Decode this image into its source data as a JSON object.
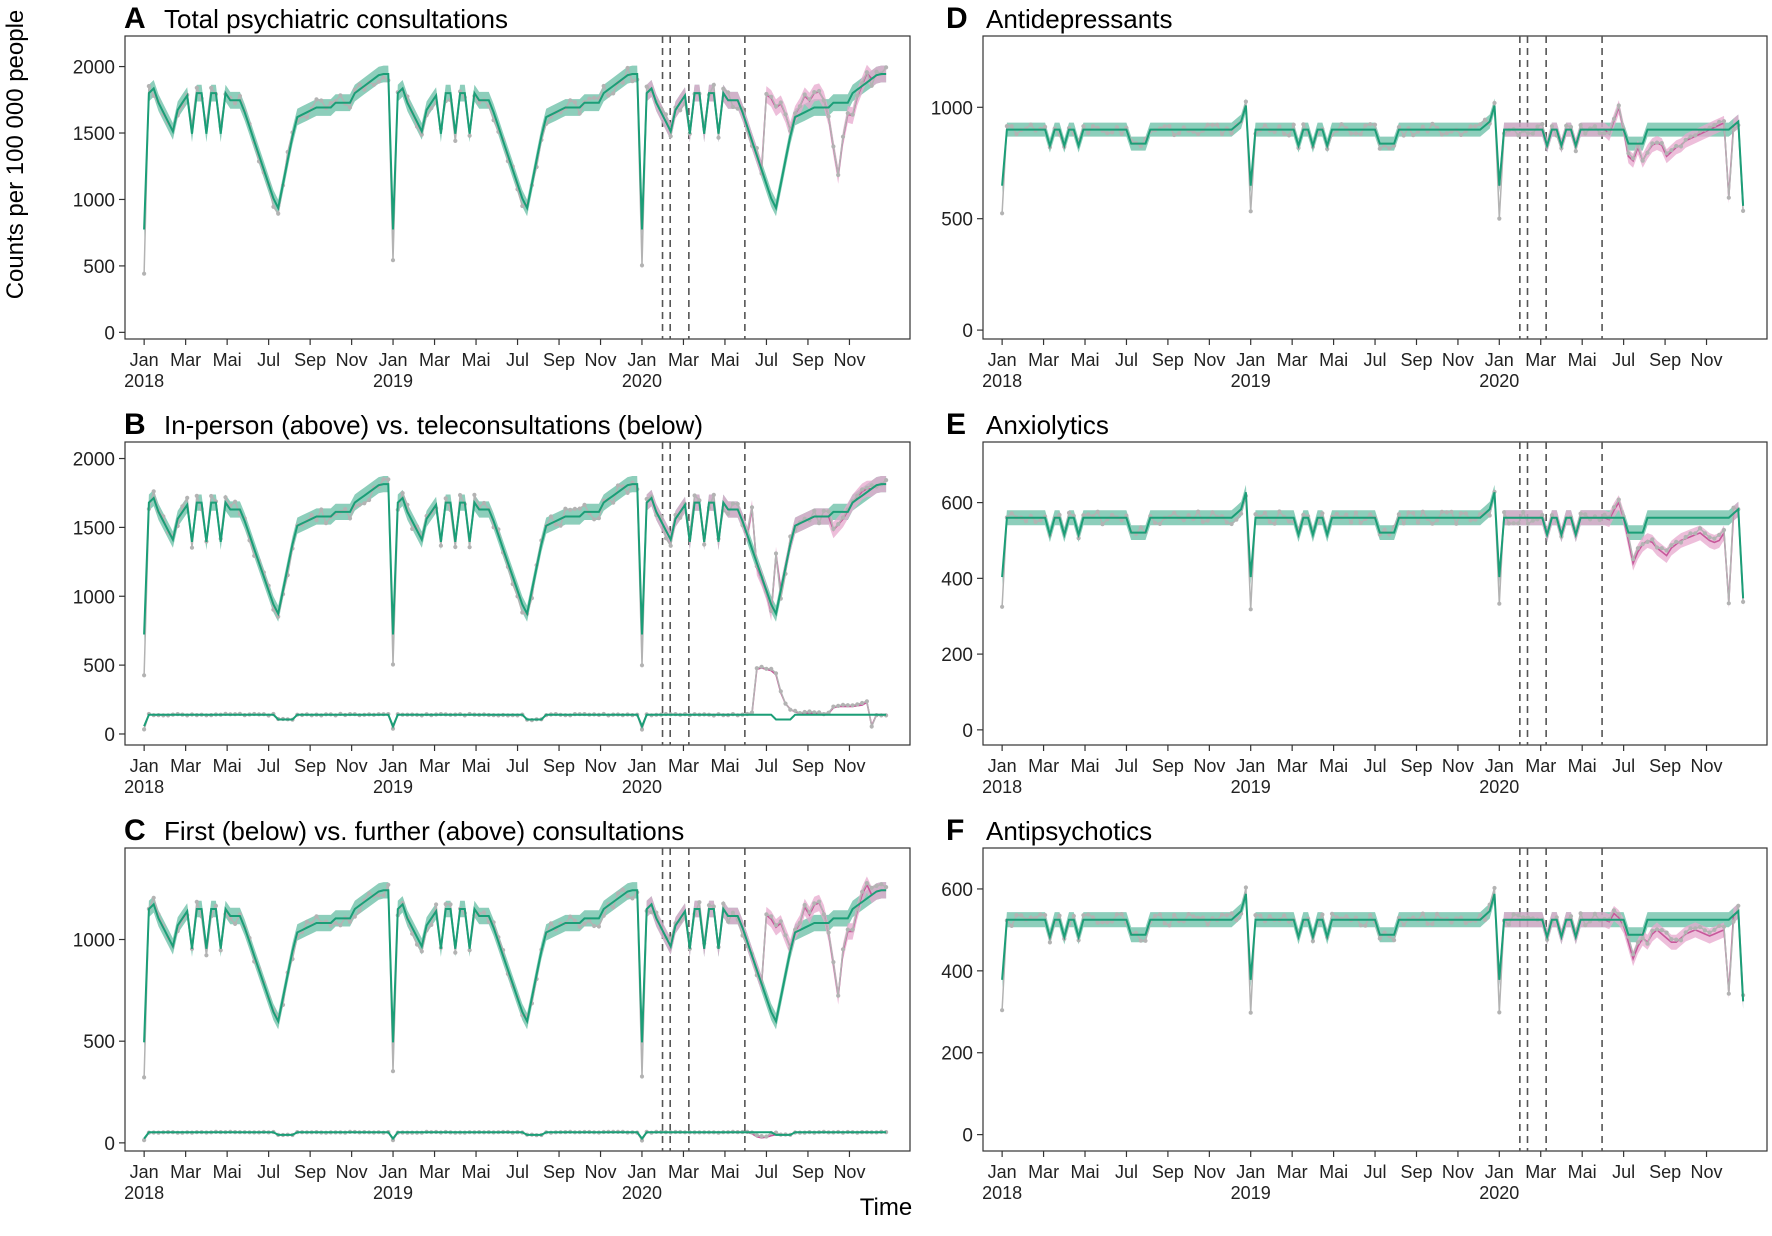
{
  "figure": {
    "shared_xlabel": "Time",
    "shared_ylabel": "Counts per 100 000 people",
    "colors": {
      "observed": "#b3b3b3",
      "model_green": "#1b9e77",
      "model_green_band": "#1b9e77",
      "model_pink": "#c7589b",
      "model_pink_band": "#e7a8cd",
      "vline": "#555555"
    }
  },
  "chart_data": [
    {
      "letter": "A",
      "type": "line",
      "title": "Total psychiatric consultations",
      "ylim": [
        -50,
        2230
      ],
      "yticks": [
        0,
        500,
        1000,
        1500,
        2000
      ],
      "x_tick_labels": [
        "Jan",
        "Mar",
        "Mai",
        "Jul",
        "Sep",
        "Nov",
        "Jan",
        "Mar",
        "Mai",
        "Jul",
        "Sep",
        "Nov",
        "Jan",
        "Mar",
        "Mai",
        "Jul",
        "Sep",
        "Nov"
      ],
      "x_year_labels": [
        "2018",
        "2019",
        "2020"
      ],
      "xlabel": "",
      "ylabel": "",
      "series": [
        {
          "kind": "main",
          "base": 1800,
          "amp": 1,
          "cf": [
            {
              "start": 30,
              "end": 52,
              "values": [
                1790,
                1760,
                1690,
                1720,
                1640,
                1520,
                1640,
                1700,
                1780,
                1740,
                1800,
                1810,
                1750,
                1620,
                1390,
                1180,
                1460,
                1640,
                1630,
                1770,
                1860,
                1950
              ]
            }
          ]
        }
      ],
      "vlines": [
        26.3,
        27.9,
        31.8,
        43.5
      ],
      "grid": false
    },
    {
      "letter": "B",
      "type": "line",
      "title": "In-person (above) vs. teleconsultations (below)",
      "ylim": [
        -80,
        2120
      ],
      "yticks": [
        0,
        500,
        1000,
        1500,
        2000
      ],
      "x_tick_labels": [
        "Jan",
        "Mar",
        "Mai",
        "Jul",
        "Sep",
        "Nov",
        "Jan",
        "Mar",
        "Mai",
        "Jul",
        "Sep",
        "Nov",
        "Jan",
        "Mar",
        "Mai",
        "Jul",
        "Sep",
        "Nov"
      ],
      "x_year_labels": [
        "2018",
        "2019",
        "2020"
      ],
      "xlabel": "",
      "ylabel": "",
      "series": [
        {
          "kind": "main",
          "base": 1680,
          "amp": 1,
          "cf": [
            {
              "start": 27,
              "end": 32,
              "values": [
                1640,
                1210,
                1130,
                1030,
                880,
                1300
              ]
            },
            {
              "start": 44,
              "end": 52,
              "values": [
                1480,
                1520,
                1560,
                1620,
                1680,
                1720,
                1760,
                1780
              ]
            }
          ]
        },
        {
          "kind": "flat",
          "base": 140,
          "amp": 0.05,
          "cf": [
            {
              "start": 27,
              "end": 52,
              "values": [
                150,
                470,
                480,
                470,
                460,
                430,
                300,
                220,
                180,
                160,
                150,
                150,
                150,
                150,
                150,
                150,
                150,
                190,
                200,
                200,
                200,
                200,
                205,
                210,
                230,
                60
              ]
            }
          ]
        }
      ],
      "vlines": [
        26.3,
        27.9,
        31.8,
        43.5
      ],
      "grid": false
    },
    {
      "letter": "C",
      "type": "line",
      "title": "First (below) vs. further (above) consultations",
      "ylim": [
        -40,
        1450
      ],
      "yticks": [
        0,
        500,
        1000
      ],
      "x_tick_labels": [
        "Jan",
        "Mar",
        "Mai",
        "Jul",
        "Sep",
        "Nov",
        "Jan",
        "Mar",
        "Mai",
        "Jul",
        "Sep",
        "Nov",
        "Jan",
        "Mar",
        "Mai",
        "Jul",
        "Sep",
        "Nov"
      ],
      "x_year_labels": [
        "2018",
        "2019",
        "2020"
      ],
      "xlabel": "",
      "ylabel": "",
      "series": [
        {
          "kind": "main",
          "base": 1150,
          "amp": 0.66,
          "cf": [
            {
              "start": 30,
              "end": 52,
              "values": [
                1120,
                1100,
                1060,
                1080,
                1020,
                960,
                1040,
                1080,
                1160,
                1120,
                1170,
                1180,
                1130,
                1030,
                880,
                720,
                940,
                1040,
                1040,
                1140,
                1220,
                1270
              ]
            }
          ]
        },
        {
          "kind": "flat",
          "base": 52,
          "amp": 0.015,
          "cf": [
            {
              "start": 27,
              "end": 32,
              "values": [
                45,
                30,
                25,
                28,
                35,
                40
              ]
            }
          ]
        }
      ],
      "vlines": [
        26.3,
        27.9,
        31.8,
        43.5
      ],
      "grid": false
    },
    {
      "letter": "D",
      "type": "line",
      "title": "Antidepressants",
      "ylim": [
        -40,
        1320
      ],
      "yticks": [
        0,
        500,
        1000
      ],
      "x_tick_labels": [
        "Jan",
        "Mar",
        "Mai",
        "Jul",
        "Sep",
        "Nov",
        "Jan",
        "Mar",
        "Mai",
        "Jul",
        "Sep",
        "Nov",
        "Jan",
        "Mar",
        "Mai",
        "Jul",
        "Sep",
        "Nov"
      ],
      "x_year_labels": [
        "2018",
        "2019",
        "2020"
      ],
      "xlabel": "",
      "ylabel": "",
      "series": [
        {
          "kind": "rx",
          "base": 900,
          "amp": 0.35,
          "cf": [
            {
              "start": 27,
              "end": 52,
              "values": [
                880,
                940,
                1000,
                900,
                780,
                760,
                820,
                760,
                800,
                830,
                840,
                830,
                780,
                800,
                820,
                830,
                850,
                860,
                870,
                880,
                890,
                900,
                910,
                920,
                930,
                600
              ]
            }
          ]
        }
      ],
      "vlines": [
        26.3,
        27.9,
        31.8,
        43.5
      ],
      "grid": false
    },
    {
      "letter": "E",
      "type": "line",
      "title": "Anxiolytics",
      "ylim": [
        -40,
        760
      ],
      "yticks": [
        0,
        200,
        400,
        600
      ],
      "x_tick_labels": [
        "Jan",
        "Mar",
        "Mai",
        "Jul",
        "Sep",
        "Nov",
        "Jan",
        "Mar",
        "Mai",
        "Jul",
        "Sep",
        "Nov",
        "Jan",
        "Mar",
        "Mai",
        "Jul",
        "Sep",
        "Nov"
      ],
      "x_year_labels": [
        "2018",
        "2019",
        "2020"
      ],
      "xlabel": "",
      "ylabel": "",
      "series": [
        {
          "kind": "rx",
          "base": 560,
          "amp": 0.18,
          "cf": [
            {
              "start": 27,
              "end": 52,
              "values": [
                555,
                580,
                600,
                560,
                500,
                440,
                470,
                490,
                500,
                495,
                480,
                470,
                460,
                480,
                490,
                500,
                505,
                510,
                515,
                520,
                510,
                500,
                495,
                500,
                520,
                340
              ]
            }
          ]
        }
      ],
      "vlines": [
        26.3,
        27.9,
        31.8,
        43.5
      ],
      "grid": false
    },
    {
      "letter": "F",
      "type": "line",
      "title": "Antipsychotics",
      "ylim": [
        -40,
        700
      ],
      "yticks": [
        0,
        200,
        400,
        600
      ],
      "x_tick_labels": [
        "Jan",
        "Mar",
        "Mai",
        "Jul",
        "Sep",
        "Nov",
        "Jan",
        "Mar",
        "Mai",
        "Jul",
        "Sep",
        "Nov",
        "Jan",
        "Mar",
        "Mai",
        "Jul",
        "Sep",
        "Nov"
      ],
      "x_year_labels": [
        "2018",
        "2019",
        "2020"
      ],
      "xlabel": "",
      "ylabel": "",
      "series": [
        {
          "kind": "rx",
          "base": 525,
          "amp": 0.1,
          "cf": [
            {
              "start": 27,
              "end": 52,
              "values": [
                520,
                540,
                530,
                510,
                470,
                430,
                460,
                480,
                470,
                490,
                500,
                490,
                480,
                470,
                470,
                480,
                490,
                495,
                500,
                495,
                490,
                485,
                490,
                495,
                500,
                350
              ]
            }
          ]
        }
      ],
      "vlines": [
        26.3,
        27.9,
        31.8,
        43.5
      ],
      "grid": false
    }
  ]
}
